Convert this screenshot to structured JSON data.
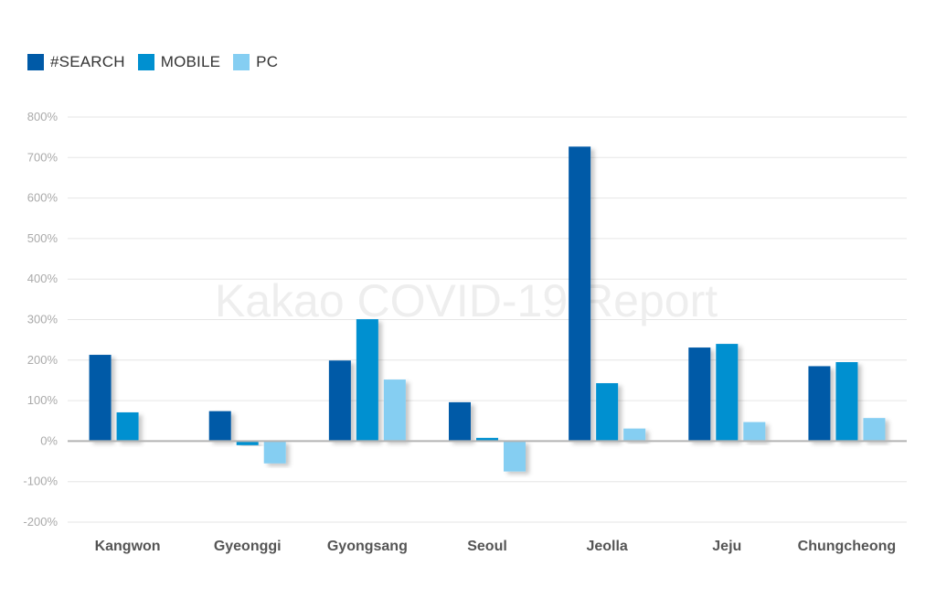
{
  "watermark": "Kakao COVID-19 Report",
  "colors": {
    "search": "#005aa7",
    "mobile": "#0090d0",
    "pc": "#85cef2",
    "grid": "#e6e6e6",
    "zero_line": "#b4b4b4"
  },
  "chart_data": {
    "type": "bar",
    "title": "",
    "xlabel": "",
    "ylabel": "",
    "categories": [
      "Kangwon",
      "Gyeonggi",
      "Gyongsang",
      "Seoul",
      "Jeolla",
      "Jeju",
      "Chungcheong"
    ],
    "series": [
      {
        "name": "#SEARCH",
        "color": "#005aa7",
        "values": [
          213,
          74,
          199,
          96,
          727,
          231,
          185
        ]
      },
      {
        "name": "MOBILE",
        "color": "#0090d0",
        "values": [
          71,
          -10,
          301,
          8,
          143,
          240,
          195
        ]
      },
      {
        "name": "PC",
        "color": "#85cef2",
        "values": [
          2,
          -55,
          152,
          -75,
          31,
          47,
          57
        ]
      }
    ],
    "ylim": [
      -200,
      800
    ],
    "yticks": [
      800,
      700,
      600,
      500,
      400,
      300,
      200,
      100,
      0,
      -100,
      -200
    ],
    "ytick_labels": [
      "800%",
      "700%",
      "600%",
      "500%",
      "400%",
      "300%",
      "200%",
      "100%",
      "0%",
      "-100%",
      "-200%"
    ],
    "grid": true,
    "legend_position": "top-left"
  }
}
